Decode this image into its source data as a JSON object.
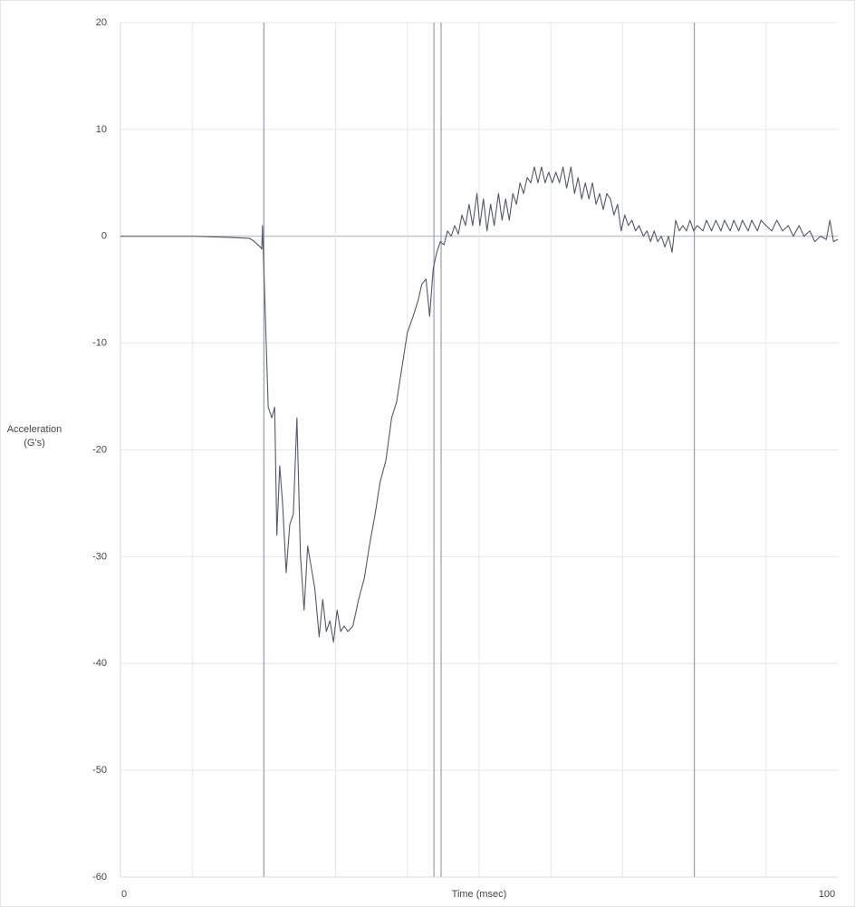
{
  "chart_data": {
    "type": "line",
    "ylabel": [
      "Acceleration",
      "(G's)"
    ],
    "xlabel": "Time (msec)",
    "color": "#55566e",
    "xlim": [
      0,
      100
    ],
    "xticks": [
      0,
      100
    ],
    "xgrid": [
      10,
      20,
      30,
      40,
      50,
      60,
      70,
      80,
      90
    ],
    "markers": [
      20,
      43.7,
      44.7,
      80
    ],
    "ylim": [
      -60,
      20
    ],
    "yticks": [
      -60,
      -50,
      -40,
      -30,
      -20,
      -10,
      0,
      10,
      20
    ],
    "grid": true,
    "x": [
      0,
      5,
      10,
      15,
      18,
      18.5,
      19.5,
      19.7,
      19.8,
      20.6,
      21.1,
      21.5,
      21.8,
      22.2,
      22.6,
      23.1,
      23.6,
      24.1,
      24.6,
      25.1,
      25.6,
      26.1,
      26.6,
      27.1,
      27.7,
      28.2,
      28.7,
      29.2,
      29.7,
      30.2,
      30.7,
      31.2,
      31.7,
      32.4,
      33.2,
      34.0,
      34.7,
      35.5,
      36.2,
      37.0,
      37.8,
      38.5,
      39.3,
      40.0,
      40.8,
      41.5,
      42.0,
      42.6,
      43.1,
      43.6,
      44.1,
      44.6,
      45.1,
      45.6,
      46.1,
      46.6,
      47.1,
      47.6,
      48.1,
      48.6,
      49.1,
      49.7,
      50.1,
      50.6,
      51.1,
      51.6,
      52.1,
      52.7,
      53.2,
      53.7,
      54.2,
      54.7,
      55.2,
      55.7,
      56.2,
      56.7,
      57.2,
      57.7,
      58.2,
      58.7,
      59.2,
      59.7,
      60.2,
      60.7,
      61.2,
      61.7,
      62.2,
      62.8,
      63.3,
      63.8,
      64.3,
      64.8,
      65.3,
      65.8,
      66.3,
      66.8,
      67.3,
      67.8,
      68.3,
      68.8,
      69.3,
      69.8,
      70.3,
      70.8,
      71.3,
      71.8,
      72.3,
      72.9,
      73.4,
      73.9,
      74.4,
      74.9,
      75.4,
      75.9,
      76.4,
      76.9,
      77.4,
      77.9,
      78.4,
      78.9,
      79.4,
      79.9,
      80.4,
      81.2,
      81.7,
      82.4,
      83.0,
      83.7,
      84.2,
      85.0,
      85.5,
      86.2,
      86.7,
      87.5,
      88.0,
      88.8,
      89.3,
      90.0,
      90.8,
      91.5,
      92.3,
      93.1,
      93.8,
      94.6,
      95.3,
      96.1,
      96.8,
      97.6,
      98.4,
      98.9,
      99.4,
      100
    ],
    "values": [
      0,
      0,
      0,
      -0.1,
      -0.2,
      -0.4,
      -1,
      -1.2,
      1,
      -16,
      -17,
      -16,
      -28,
      -21.5,
      -25,
      -31.5,
      -27,
      -26,
      -17,
      -30,
      -35,
      -29,
      -31,
      -33,
      -37.5,
      -34,
      -37,
      -36,
      -38,
      -35,
      -37,
      -36.5,
      -37,
      -36.5,
      -34,
      -32,
      -29,
      -26,
      -23,
      -21,
      -17,
      -15.5,
      -12,
      -9,
      -7.5,
      -6,
      -4.5,
      -4,
      -7.5,
      -3,
      -1.5,
      -0.5,
      -0.8,
      0.5,
      0,
      1,
      0.2,
      2,
      1,
      3,
      1,
      4,
      1,
      3.5,
      0.5,
      3,
      1,
      4,
      1.5,
      3.5,
      1.5,
      4,
      3,
      5,
      4,
      5.5,
      5,
      6.5,
      5,
      6.5,
      5,
      6,
      5,
      6,
      5,
      6.5,
      4.5,
      6.5,
      4,
      5.5,
      3.5,
      5,
      3.5,
      5,
      3,
      4,
      2.5,
      4,
      3.5,
      2,
      3,
      0.5,
      2,
      1,
      1.5,
      0.5,
      1,
      0,
      0.5,
      -0.5,
      0.5,
      -0.5,
      0,
      -1,
      0,
      -1.5,
      1.5,
      0.5,
      1,
      0.5,
      1.5,
      0.5,
      1,
      0.5,
      1.5,
      0.5,
      1.5,
      0.5,
      1.5,
      0.5,
      1.5,
      0.5,
      1.5,
      0.5,
      1.5,
      0.5,
      1.5,
      1,
      0.5,
      1.5,
      0.5,
      1,
      0,
      1,
      0,
      0.5,
      -0.5,
      0,
      -0.3,
      1.5,
      -0.5,
      -0.3
    ]
  }
}
